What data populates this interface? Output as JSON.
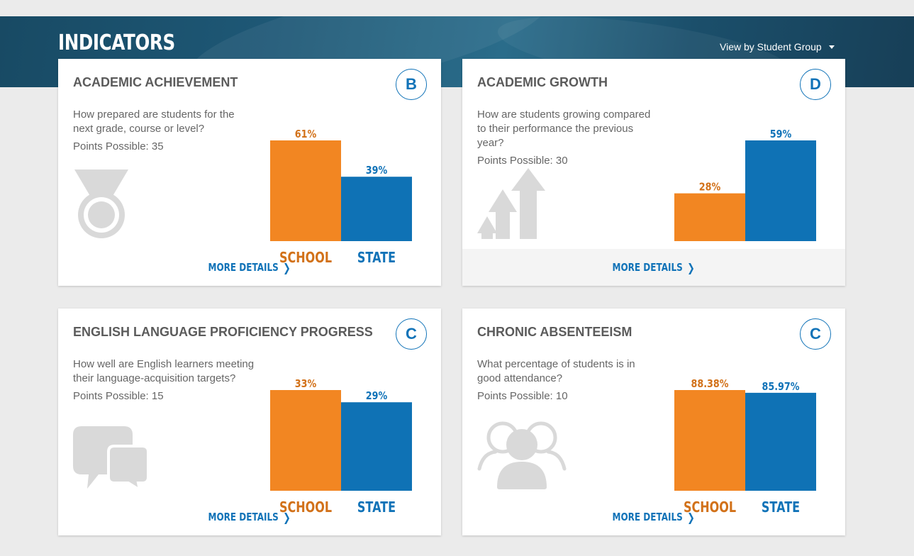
{
  "header": {
    "title": "INDICATORS",
    "view_dropdown_label": "View by Student Group"
  },
  "colors": {
    "school": "#f28622",
    "state": "#0f72b5",
    "school_text": "#d27119",
    "state_text": "#1173b8"
  },
  "cards": [
    {
      "title": "ACADEMIC ACHIEVEMENT",
      "grade": "B",
      "question": "How prepared are students for the next grade, course or level?",
      "points": "Points Possible: 35",
      "icon": "medal-icon",
      "more_details": "MORE DETAILS"
    },
    {
      "title": "ACADEMIC GROWTH",
      "grade": "D",
      "question": "How are students growing compared to their performance the previous year?",
      "points": "Points Possible: 30",
      "icon": "growth-arrows-icon",
      "more_details": "MORE DETAILS"
    },
    {
      "title": "ENGLISH LANGUAGE PROFICIENCY PROGRESS",
      "grade": "C",
      "question": "How well are English learners meeting their language-acquisition targets?",
      "points": "Points Possible: 15",
      "icon": "speech-bubbles-icon",
      "more_details": "MORE DETAILS"
    },
    {
      "title": "CHRONIC ABSENTEEISM",
      "grade": "C",
      "question": "What percentage of students is in good attendance?",
      "points": "Points Possible: 10",
      "icon": "people-group-icon",
      "more_details": "MORE DETAILS"
    }
  ],
  "chart_data": [
    {
      "type": "bar",
      "categories": [
        "SCHOOL",
        "STATE"
      ],
      "values": [
        61,
        39
      ],
      "value_labels": [
        "61%",
        "39%"
      ],
      "ylim": [
        0,
        61
      ]
    },
    {
      "type": "bar",
      "categories": [
        "SCHOOL",
        "STATE"
      ],
      "values": [
        28,
        59
      ],
      "value_labels": [
        "28%",
        "59%"
      ],
      "ylim": [
        0,
        59
      ]
    },
    {
      "type": "bar",
      "categories": [
        "SCHOOL",
        "STATE"
      ],
      "values": [
        33,
        29
      ],
      "value_labels": [
        "33%",
        "29%"
      ],
      "ylim": [
        0,
        33
      ]
    },
    {
      "type": "bar",
      "categories": [
        "SCHOOL",
        "STATE"
      ],
      "values": [
        88.38,
        85.97
      ],
      "value_labels": [
        "88.38%",
        "85.97%"
      ],
      "ylim": [
        0,
        88.38
      ]
    }
  ]
}
